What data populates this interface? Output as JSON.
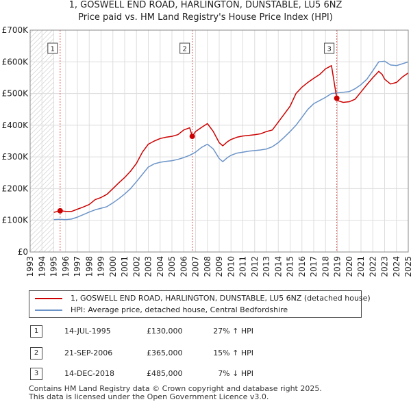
{
  "header": {
    "title": "1, GOSWELL END ROAD, HARLINGTON, DUNSTABLE, LU5 6NZ",
    "subtitle": "Price paid vs. HM Land Registry's House Price Index (HPI)"
  },
  "chart_data": {
    "type": "line",
    "title": "1, GOSWELL END ROAD, HARLINGTON, DUNSTABLE, LU5 6NZ",
    "subtitle": "Price paid vs. HM Land Registry's House Price Index (HPI)",
    "xlabel": "",
    "ylabel": "",
    "xlim": [
      1993,
      2025
    ],
    "ylim": [
      0,
      700000
    ],
    "grid": true,
    "y_ticks": [
      {
        "value": 0,
        "label": "£0"
      },
      {
        "value": 100000,
        "label": "£100K"
      },
      {
        "value": 200000,
        "label": "£200K"
      },
      {
        "value": 300000,
        "label": "£300K"
      },
      {
        "value": 400000,
        "label": "£400K"
      },
      {
        "value": 500000,
        "label": "£500K"
      },
      {
        "value": 600000,
        "label": "£600K"
      },
      {
        "value": 700000,
        "label": "£700K"
      }
    ],
    "x_ticks": [
      "1993",
      "1994",
      "1995",
      "1996",
      "1997",
      "1998",
      "1999",
      "2000",
      "2001",
      "2002",
      "2003",
      "2004",
      "2005",
      "2006",
      "2007",
      "2008",
      "2009",
      "2010",
      "2011",
      "2012",
      "2013",
      "2014",
      "2015",
      "2016",
      "2017",
      "2018",
      "2019",
      "2020",
      "2021",
      "2022",
      "2023",
      "2024",
      "2025"
    ],
    "hatched_region": [
      1993,
      1995.0
    ],
    "series": [
      {
        "name": "1, GOSWELL END ROAD, HARLINGTON, DUNSTABLE, LU5 6NZ (detached house)",
        "color": "#cc0000",
        "x": [
          1995.0,
          1995.54,
          1996.0,
          1996.5,
          1997.0,
          1997.5,
          1998.0,
          1998.5,
          1999.0,
          1999.5,
          2000.0,
          2000.5,
          2001.0,
          2001.5,
          2002.0,
          2002.5,
          2003.0,
          2003.5,
          2004.0,
          2004.5,
          2005.0,
          2005.5,
          2006.0,
          2006.5,
          2006.72,
          2007.0,
          2007.5,
          2008.0,
          2008.5,
          2009.0,
          2009.3,
          2009.7,
          2010.0,
          2010.5,
          2011.0,
          2011.5,
          2012.0,
          2012.5,
          2013.0,
          2013.5,
          2014.0,
          2014.5,
          2015.0,
          2015.5,
          2016.0,
          2016.5,
          2017.0,
          2017.5,
          2018.0,
          2018.5,
          2018.95,
          2019.0,
          2019.5,
          2020.0,
          2020.5,
          2021.0,
          2021.5,
          2022.0,
          2022.5,
          2022.8,
          2023.0,
          2023.5,
          2024.0,
          2024.5,
          2025.0
        ],
        "y": [
          125000,
          130000,
          128000,
          128000,
          135000,
          142000,
          150000,
          165000,
          172000,
          182000,
          200000,
          218000,
          235000,
          255000,
          280000,
          315000,
          340000,
          350000,
          358000,
          362000,
          365000,
          370000,
          385000,
          392000,
          365000,
          380000,
          393000,
          405000,
          380000,
          345000,
          335000,
          348000,
          355000,
          362000,
          366000,
          368000,
          370000,
          373000,
          380000,
          385000,
          410000,
          435000,
          460000,
          500000,
          520000,
          535000,
          548000,
          560000,
          578000,
          588000,
          485000,
          478000,
          472000,
          474000,
          482000,
          505000,
          528000,
          550000,
          570000,
          560000,
          545000,
          530000,
          535000,
          552000,
          565000
        ]
      },
      {
        "name": "HPI: Average price, detached house, Central Bedfordshire",
        "color": "#6a93c8",
        "x": [
          1995.0,
          1995.5,
          1996.0,
          1996.5,
          1997.0,
          1997.5,
          1998.0,
          1998.5,
          1999.0,
          1999.5,
          2000.0,
          2000.5,
          2001.0,
          2001.5,
          2002.0,
          2002.5,
          2003.0,
          2003.5,
          2004.0,
          2004.5,
          2005.0,
          2005.5,
          2006.0,
          2006.5,
          2007.0,
          2007.5,
          2008.0,
          2008.5,
          2009.0,
          2009.3,
          2009.7,
          2010.0,
          2010.5,
          2011.0,
          2011.5,
          2012.0,
          2012.5,
          2013.0,
          2013.5,
          2014.0,
          2014.5,
          2015.0,
          2015.5,
          2016.0,
          2016.5,
          2017.0,
          2017.5,
          2018.0,
          2018.5,
          2019.0,
          2019.5,
          2020.0,
          2020.5,
          2021.0,
          2021.5,
          2022.0,
          2022.5,
          2023.0,
          2023.5,
          2024.0,
          2024.5,
          2025.0
        ],
        "y": [
          102000,
          103000,
          102000,
          104000,
          110000,
          118000,
          126000,
          133000,
          138000,
          143000,
          155000,
          168000,
          183000,
          200000,
          222000,
          245000,
          268000,
          278000,
          283000,
          286000,
          288000,
          292000,
          298000,
          305000,
          315000,
          330000,
          340000,
          325000,
          295000,
          285000,
          298000,
          305000,
          312000,
          315000,
          318000,
          320000,
          322000,
          325000,
          332000,
          345000,
          362000,
          380000,
          400000,
          425000,
          450000,
          468000,
          478000,
          488000,
          500000,
          502000,
          504000,
          506000,
          515000,
          528000,
          545000,
          572000,
          600000,
          602000,
          590000,
          588000,
          594000,
          600000
        ]
      }
    ],
    "transactions": [
      {
        "id": "1",
        "x": 1995.54,
        "y": 130000,
        "date": "14-JUL-1995",
        "price": "£130,000",
        "hpi": "27% ↑ HPI"
      },
      {
        "id": "2",
        "x": 2006.72,
        "y": 365000,
        "date": "21-SEP-2006",
        "price": "£365,000",
        "hpi": "15% ↑ HPI"
      },
      {
        "id": "3",
        "x": 2018.95,
        "y": 485000,
        "date": "14-DEC-2018",
        "price": "£485,000",
        "hpi": "7% ↓ HPI"
      }
    ]
  },
  "legend": {
    "items": [
      {
        "label": "1, GOSWELL END ROAD, HARLINGTON, DUNSTABLE, LU5 6NZ (detached house)",
        "color": "#cc0000"
      },
      {
        "label": "HPI: Average price, detached house, Central Bedfordshire",
        "color": "#6a93c8"
      }
    ]
  },
  "footer": {
    "line1": "Contains HM Land Registry data © Crown copyright and database right 2025.",
    "line2": "This data is licensed under the Open Government Licence v3.0."
  }
}
